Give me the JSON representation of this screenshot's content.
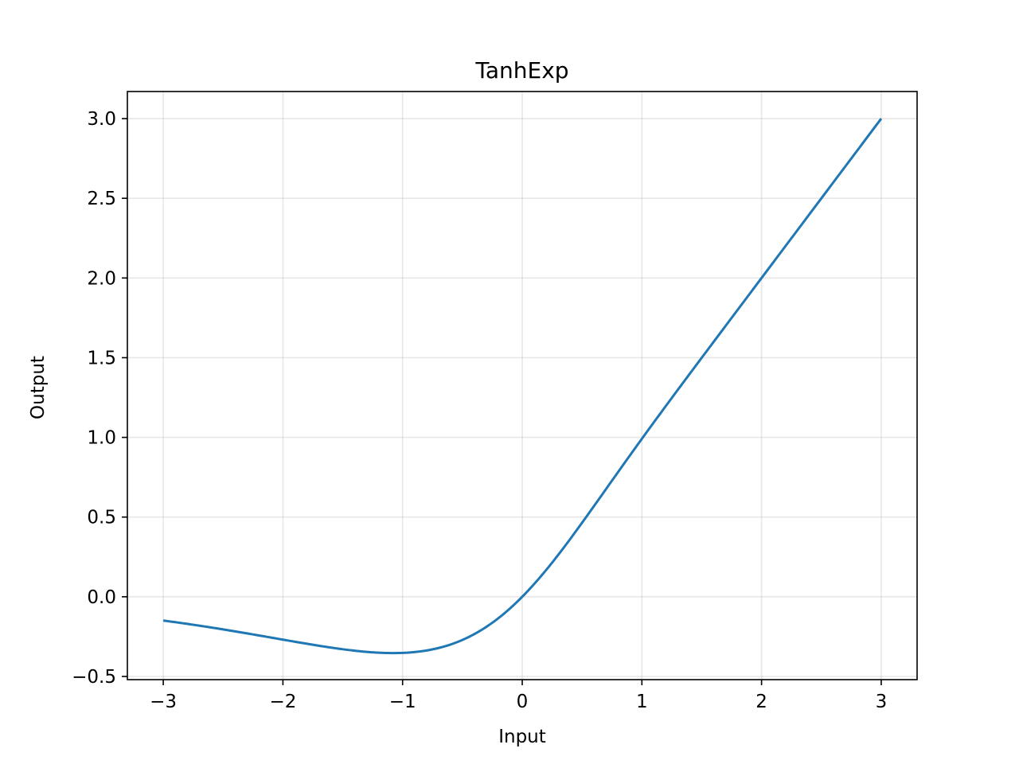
{
  "chart_data": {
    "type": "line",
    "title": "TanhExp",
    "xlabel": "Input",
    "ylabel": "Output",
    "xlim": [
      -3.3,
      3.3
    ],
    "ylim": [
      -0.52,
      3.17
    ],
    "xticks": [
      -3,
      -2,
      -1,
      0,
      1,
      2,
      3
    ],
    "xtick_labels": [
      "−3",
      "−2",
      "−1",
      "0",
      "1",
      "2",
      "3"
    ],
    "yticks": [
      -0.5,
      0.0,
      0.5,
      1.0,
      1.5,
      2.0,
      2.5,
      3.0
    ],
    "ytick_labels": [
      "−0.5",
      "0.0",
      "0.5",
      "1.0",
      "1.5",
      "2.0",
      "2.5",
      "3.0"
    ],
    "grid": true,
    "series": [
      {
        "color": "#1f77b4",
        "x": [
          -3.0,
          -2.75,
          -2.5,
          -2.25,
          -2.0,
          -1.75,
          -1.5,
          -1.25,
          -1.0,
          -0.75,
          -0.5,
          -0.25,
          0.0,
          0.25,
          0.5,
          0.75,
          1.0,
          1.25,
          1.5,
          1.75,
          2.0,
          2.25,
          2.5,
          2.75,
          3.0
        ],
        "y": [
          -0.149,
          -0.175,
          -0.204,
          -0.236,
          -0.268,
          -0.298,
          -0.325,
          -0.343,
          -0.349,
          -0.336,
          -0.288,
          -0.184,
          0.0,
          0.27,
          0.59,
          0.919,
          0.991,
          1.25,
          1.5,
          1.75,
          2.0,
          2.25,
          2.5,
          2.75,
          3.0
        ]
      }
    ]
  }
}
